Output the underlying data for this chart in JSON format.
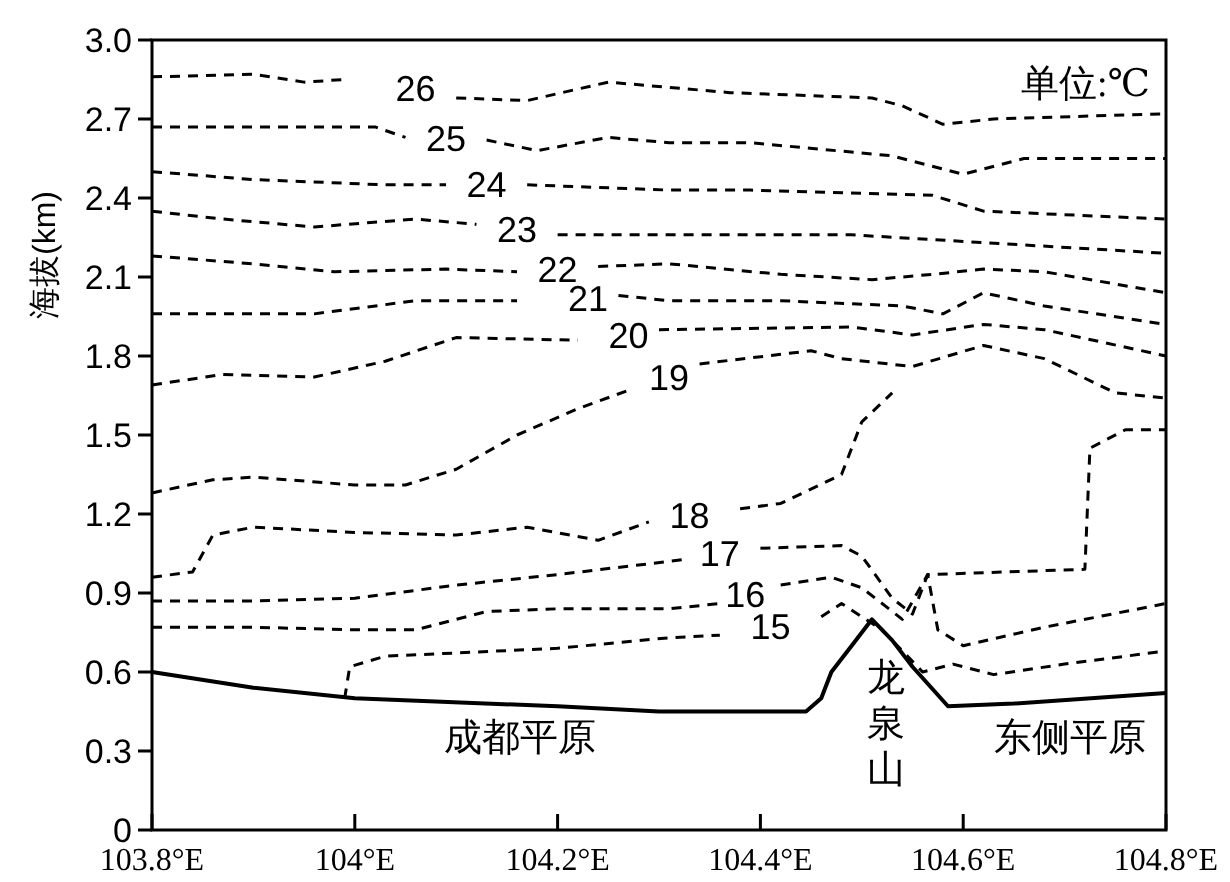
{
  "chart_data": {
    "type": "line",
    "ylabel": "海拔(km)",
    "xlim": [
      103.8,
      104.8
    ],
    "xticks": [
      {
        "value": 103.8,
        "label": "103.8°E"
      },
      {
        "value": 104,
        "label": "104°E"
      },
      {
        "value": 104.2,
        "label": "104.2°E"
      },
      {
        "value": 104.4,
        "label": "104.4°E"
      },
      {
        "value": 104.6,
        "label": "104.6°E"
      },
      {
        "value": 104.8,
        "label": "104.8°E"
      }
    ],
    "ylim": [
      0,
      3
    ],
    "yticks": [
      0,
      0.3,
      0.6,
      0.9,
      1.2,
      1.5,
      1.8,
      2.1,
      2.4,
      2.7,
      {
        "value": 3,
        "label": "3.0"
      }
    ],
    "grid": false,
    "marker": "none",
    "annotations": [
      "单位:℃",
      "成都平原",
      "龙泉山",
      "东侧平原"
    ],
    "series": [
      {
        "color": "#000000",
        "line_style": "solid",
        "x": [
          103.8,
          103.9,
          104.0,
          104.2,
          104.3,
          104.445,
          104.46,
          104.47,
          104.49,
          104.51,
          104.53,
          104.55,
          104.585,
          104.65,
          104.8
        ],
        "values": [
          0.6,
          0.54,
          0.5,
          0.47,
          0.45,
          0.45,
          0.5,
          0.6,
          0.7,
          0.8,
          0.72,
          0.62,
          0.47,
          0.48,
          0.52
        ]
      },
      {
        "name": "15",
        "color": "#000000",
        "line_style": "dashed",
        "x": [
          103.99,
          103.995,
          104.03,
          104.2,
          104.31,
          104.36,
          104.41,
          104.46,
          104.48,
          104.52,
          104.56,
          104.59,
          104.63,
          104.7,
          104.8
        ],
        "values": [
          0.5,
          0.62,
          0.66,
          0.69,
          0.73,
          0.74,
          null,
          0.81,
          0.86,
          0.76,
          0.6,
          0.63,
          0.59,
          0.63,
          0.68
        ]
      },
      {
        "name": "16",
        "color": "#000000",
        "line_style": "dashed",
        "x": [
          103.8,
          103.9,
          104.0,
          104.06,
          104.13,
          104.2,
          104.31,
          104.36,
          104.385,
          104.42,
          104.47,
          104.5,
          104.54,
          104.565,
          104.575,
          104.6,
          104.68,
          104.8
        ],
        "values": [
          0.77,
          0.77,
          0.76,
          0.76,
          0.83,
          0.84,
          0.84,
          0.86,
          null,
          0.93,
          0.96,
          0.92,
          0.8,
          0.97,
          0.76,
          0.7,
          0.77,
          0.86
        ]
      },
      {
        "name": "17",
        "color": "#000000",
        "line_style": "dashed",
        "x": [
          103.8,
          103.9,
          104.0,
          104.1,
          104.2,
          104.31,
          104.33,
          104.36,
          104.4,
          104.48,
          104.5,
          104.53,
          104.55,
          104.565,
          104.72,
          104.725,
          104.76,
          104.8
        ],
        "values": [
          0.87,
          0.87,
          0.88,
          0.93,
          0.97,
          1.02,
          1.03,
          null,
          1.07,
          1.08,
          1.04,
          0.88,
          0.82,
          0.97,
          0.99,
          1.45,
          1.52,
          1.52
        ]
      },
      {
        "name": "18",
        "color": "#000000",
        "line_style": "dashed",
        "x": [
          103.8,
          103.84,
          103.86,
          103.9,
          104.0,
          104.1,
          104.17,
          104.24,
          104.29,
          104.33,
          104.38,
          104.42,
          104.48,
          104.5,
          104.53
        ],
        "values": [
          0.96,
          0.98,
          1.12,
          1.15,
          1.13,
          1.12,
          1.15,
          1.1,
          1.17,
          null,
          1.22,
          1.24,
          1.35,
          1.55,
          1.66
        ]
      },
      {
        "name": "19",
        "color": "#000000",
        "line_style": "dashed",
        "x": [
          103.8,
          103.86,
          103.9,
          104.0,
          104.05,
          104.1,
          104.16,
          104.22,
          104.27,
          104.31,
          104.34,
          104.45,
          104.48,
          104.55,
          104.62,
          104.68,
          104.75,
          104.8
        ],
        "values": [
          1.28,
          1.33,
          1.34,
          1.31,
          1.31,
          1.37,
          1.5,
          1.6,
          1.67,
          null,
          1.77,
          1.82,
          1.79,
          1.76,
          1.84,
          1.79,
          1.66,
          1.64
        ]
      },
      {
        "name": "20",
        "color": "#000000",
        "line_style": "dashed",
        "x": [
          103.8,
          103.87,
          103.96,
          104.03,
          104.1,
          104.22,
          104.27,
          104.3,
          104.49,
          104.55,
          104.62,
          104.68,
          104.8
        ],
        "values": [
          1.69,
          1.73,
          1.72,
          1.78,
          1.87,
          1.86,
          null,
          1.9,
          1.91,
          1.88,
          1.92,
          1.9,
          1.8
        ]
      },
      {
        "name": "21",
        "color": "#000000",
        "line_style": "dashed",
        "x": [
          103.8,
          103.96,
          104.06,
          104.16,
          104.23,
          104.26,
          104.31,
          104.42,
          104.54,
          104.58,
          104.62,
          104.68,
          104.8
        ],
        "values": [
          1.96,
          1.96,
          2.01,
          2.01,
          null,
          2.03,
          2.01,
          2.01,
          1.99,
          1.96,
          2.04,
          1.99,
          1.92
        ]
      },
      {
        "name": "22",
        "color": "#000000",
        "line_style": "dashed",
        "x": [
          103.8,
          103.9,
          103.98,
          104.09,
          104.16,
          104.2,
          104.24,
          104.31,
          104.42,
          104.51,
          104.57,
          104.62,
          104.68,
          104.8
        ],
        "values": [
          2.18,
          2.15,
          2.12,
          2.13,
          2.12,
          null,
          2.14,
          2.15,
          2.11,
          2.09,
          2.11,
          2.13,
          2.12,
          2.04
        ]
      },
      {
        "name": "23",
        "color": "#000000",
        "line_style": "dashed",
        "x": [
          103.8,
          103.87,
          103.96,
          104.06,
          104.12,
          104.16,
          104.2,
          104.31,
          104.49,
          104.8
        ],
        "values": [
          2.35,
          2.32,
          2.29,
          2.32,
          2.3,
          null,
          2.26,
          2.26,
          2.26,
          2.19
        ]
      },
      {
        "name": "24",
        "color": "#000000",
        "line_style": "dashed",
        "x": [
          103.8,
          103.9,
          104.03,
          104.09,
          104.13,
          104.17,
          104.31,
          104.39,
          104.57,
          104.62,
          104.8
        ],
        "values": [
          2.5,
          2.47,
          2.45,
          2.45,
          null,
          2.45,
          2.43,
          2.43,
          2.41,
          2.35,
          2.32
        ]
      },
      {
        "name": "25",
        "color": "#000000",
        "line_style": "dashed",
        "x": [
          103.8,
          103.93,
          104.02,
          104.05,
          104.09,
          104.13,
          104.18,
          104.25,
          104.31,
          104.39,
          104.53,
          104.6,
          104.66,
          104.8
        ],
        "values": [
          2.67,
          2.67,
          2.67,
          2.63,
          null,
          2.62,
          2.58,
          2.63,
          2.61,
          2.61,
          2.56,
          2.49,
          2.55,
          2.55
        ]
      },
      {
        "name": "26",
        "color": "#000000",
        "line_style": "dashed",
        "x": [
          103.8,
          103.9,
          103.95,
          103.99,
          104.06,
          104.1,
          104.17,
          104.25,
          104.31,
          104.37,
          104.51,
          104.54,
          104.58,
          104.63,
          104.8
        ],
        "values": [
          2.86,
          2.87,
          2.84,
          2.85,
          null,
          2.78,
          2.77,
          2.84,
          2.82,
          2.8,
          2.78,
          2.75,
          2.68,
          2.7,
          2.72
        ]
      }
    ]
  }
}
